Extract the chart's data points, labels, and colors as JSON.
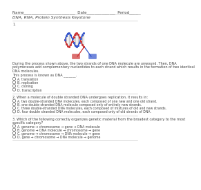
{
  "bg_color": "#ffffff",
  "header": "Name___________________________  Date_______________  Period______",
  "title": "DNA, RNA, Protein Synthesis Keystone",
  "q1_label": "1.",
  "paragraph1_lines": [
    "During the process shown above, the two strands of one DNA molecule are unwound. Then, DNA",
    "polymerases add complementary nucleotides to each strand which results in the formation of two identical",
    "DNA molecules."
  ],
  "process_label": "This process is known as DNA _______.",
  "q1_options": [
    "A. translation",
    "B. replication",
    "C. cloning",
    "D. transcription"
  ],
  "q2_label": "2. When a molecule of double stranded DNA undergoes replication, it results in:",
  "q2_options": [
    "A. two double-stranded DNA molecules, each composed of one new and one old strand.",
    "B. one double stranded DNA molecule composed only of entirely new strands.",
    "C. three double-stranded DNA molecules, each composed of mixtures of old and new strands.",
    "D. four double stranded DNA molecules, each composed only of old strands of DNA."
  ],
  "q3_label_lines": [
    "3. Which of the following correctly organizes genetic material from the broadest category to the most",
    "specific category?"
  ],
  "q3_options": [
    "A. genome → chromosome → gene → DNA molecule",
    "B. genome → DNA molecule → chromosome → gene",
    "C. genome → chromosome → DNA molecule → gene",
    "D. gene → chromosome → DNA molecule → genome"
  ],
  "text_color": "#404040",
  "line_color": "#bbbbbb",
  "circle_color": "#666666"
}
